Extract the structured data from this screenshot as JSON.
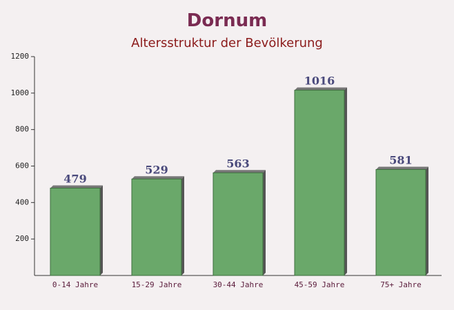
{
  "chart_data": {
    "type": "bar",
    "title": "Dornum",
    "subtitle": "Altersstruktur der Bevölkerung",
    "categories": [
      "0-14 Jahre",
      "15-29 Jahre",
      "30-44 Jahre",
      "45-59 Jahre",
      "75+ Jahre"
    ],
    "values": [
      479,
      529,
      563,
      1016,
      581
    ],
    "color": "#6aa86a",
    "ylim": [
      0,
      1200
    ],
    "yticks": [
      200,
      400,
      600,
      800,
      1000,
      1200
    ]
  }
}
